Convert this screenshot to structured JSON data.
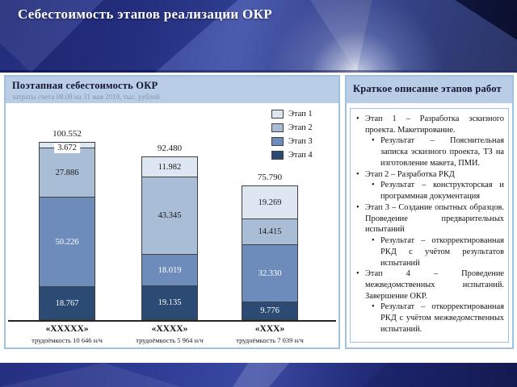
{
  "slide": {
    "title": "Себестоимость этапов реализации ОКР"
  },
  "chart_data": {
    "type": "bar",
    "stacked": true,
    "stack_order": "top-to-bottom",
    "title": "Поэтапная себестоимость ОКР",
    "subtitle": "затраты счета 08.08 на 31 мая 2018, тыс. рублей",
    "unit": "тыс. рублей",
    "categories": [
      "«XXXXX»",
      "«XXXX»",
      "«XXX»"
    ],
    "category_sublabels": [
      "трудоёмкость 10 646 н/ч",
      "трудоёмкость 5 964 н/ч",
      "трудоёмкость 7 039 н/ч"
    ],
    "series": [
      {
        "name": "Этап 1",
        "color": "#dde6f1",
        "values": [
          3.672,
          11.982,
          19.269
        ]
      },
      {
        "name": "Этап 2",
        "color": "#a9bdd6",
        "values": [
          27.886,
          43.345,
          14.415
        ]
      },
      {
        "name": "Этап 3",
        "color": "#6d8cbc",
        "values": [
          50.226,
          18.019,
          32.33
        ]
      },
      {
        "name": "Этап 4",
        "color": "#2b4a74",
        "values": [
          18.767,
          19.135,
          9.776
        ]
      }
    ],
    "totals_display": [
      "100.552",
      "92.480",
      "75.790"
    ],
    "legend_position": "top-right",
    "grid": false,
    "ylim": [
      0,
      110
    ]
  },
  "description": {
    "title": "Краткое описание этапов работ",
    "items": [
      {
        "level": 1,
        "text": "Этап 1 – Разработка эскизного проекта. Макетирование."
      },
      {
        "level": 2,
        "text": "Результат – Пояснительная записка эскизного проекта, ТЗ на изготовление макета, ПМИ."
      },
      {
        "level": 1,
        "text": "Этап 2 – Разработка РКД"
      },
      {
        "level": 2,
        "text": "Результат – конструкторская и программная документация"
      },
      {
        "level": 1,
        "text": "Этап 3 – Создание опытных образцов. Проведение предварительных испытаний"
      },
      {
        "level": 2,
        "text": "Результат – откорректированная РКД с учётом результатов испытаний"
      },
      {
        "level": 1,
        "text": "Этап 4 – Проведение межведомственных испытаний. Завершение ОКР."
      },
      {
        "level": 2,
        "text": "Результат – откорректированная РКД с учётом межведомственных испытаний."
      }
    ]
  },
  "colors": {
    "header_fill": "#b9cde6",
    "panel_border": "#9fc2e0",
    "stage1": "#dde6f1",
    "stage2": "#a9bdd6",
    "stage3": "#6d8cbc",
    "stage4": "#2b4a74",
    "banner_base": "#2c3a92"
  }
}
